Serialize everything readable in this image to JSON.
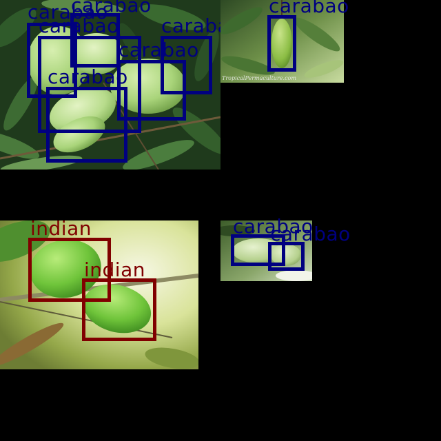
{
  "colors": {
    "carabao": "#000080",
    "indian": "#800000",
    "background": "#000000"
  },
  "tiles": {
    "top_left": {
      "labels": [
        "carabao",
        "carabao",
        "carabao",
        "carabao",
        "carabao",
        "carabao"
      ]
    },
    "top_right": {
      "labels": [
        "carabao"
      ],
      "watermark": "TropicalPermaculture.com"
    },
    "bottom_left": {
      "labels": [
        "indian",
        "indian"
      ]
    },
    "bottom_right": {
      "labels": [
        "carabao",
        "carabao"
      ]
    }
  }
}
